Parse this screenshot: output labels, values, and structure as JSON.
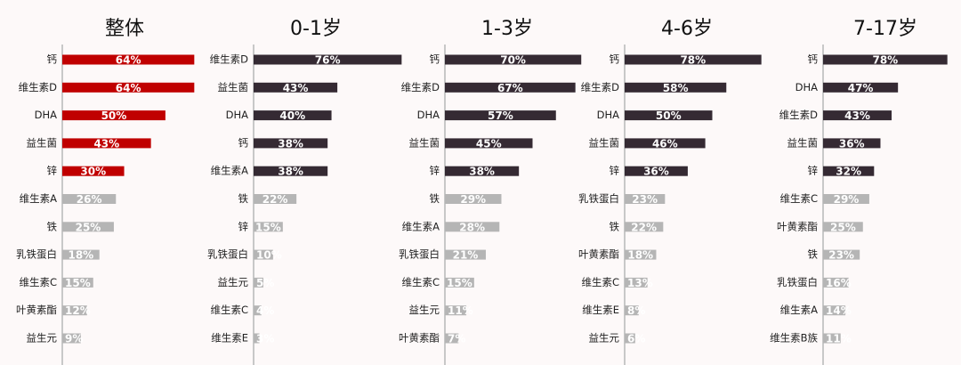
{
  "chart_data": [
    {
      "type": "bar",
      "title": "整体",
      "categories": [
        "钙",
        "维生素D",
        "DHA",
        "益生菌",
        "锌",
        "维生素A",
        "铁",
        "乳铁蛋白",
        "维生素C",
        "叶黄素酯",
        "益生元"
      ],
      "values": [
        64,
        64,
        50,
        43,
        30,
        26,
        25,
        18,
        15,
        12,
        9
      ],
      "value_labels": [
        "64%",
        "64%",
        "50%",
        "43%",
        "30%",
        "26%",
        "25%",
        "18%",
        "15%",
        "12%",
        "9%"
      ],
      "colors": [
        "#c00000",
        "#c00000",
        "#c00000",
        "#c00000",
        "#c00000",
        "#b5b5b5",
        "#b5b5b5",
        "#b5b5b5",
        "#b5b5b5",
        "#b5b5b5",
        "#b5b5b5"
      ],
      "xlim": [
        0,
        85
      ]
    },
    {
      "type": "bar",
      "title": "0-1岁",
      "categories": [
        "维生素D",
        "益生菌",
        "DHA",
        "钙",
        "维生素A",
        "铁",
        "锌",
        "乳铁蛋白",
        "益生元",
        "维生素C",
        "维生素E"
      ],
      "values": [
        76,
        43,
        40,
        38,
        38,
        22,
        15,
        10,
        5,
        4,
        3
      ],
      "value_labels": [
        "76%",
        "43%",
        "40%",
        "38%",
        "38%",
        "22%",
        "15%",
        "10%",
        "5%",
        "4%",
        "3%"
      ],
      "colors": [
        "#352a33",
        "#352a33",
        "#352a33",
        "#352a33",
        "#352a33",
        "#b5b5b5",
        "#b5b5b5",
        "#b5b5b5",
        "#b5b5b5",
        "#b5b5b5",
        "#b5b5b5"
      ],
      "xlim": [
        0,
        90
      ]
    },
    {
      "type": "bar",
      "title": "1-3岁",
      "categories": [
        "钙",
        "维生素D",
        "DHA",
        "益生菌",
        "锌",
        "铁",
        "维生素A",
        "乳铁蛋白",
        "维生素C",
        "益生元",
        "叶黄素酯"
      ],
      "values": [
        70,
        67,
        57,
        45,
        38,
        29,
        28,
        21,
        15,
        11,
        7
      ],
      "value_labels": [
        "70%",
        "67%",
        "57%",
        "45%",
        "38%",
        "29%",
        "28%",
        "21%",
        "15%",
        "11%",
        "7%"
      ],
      "colors": [
        "#352a33",
        "#352a33",
        "#352a33",
        "#352a33",
        "#352a33",
        "#b5b5b5",
        "#b5b5b5",
        "#b5b5b5",
        "#b5b5b5",
        "#b5b5b5",
        "#b5b5b5"
      ],
      "xlim": [
        0,
        90
      ]
    },
    {
      "type": "bar",
      "title": "4-6岁",
      "categories": [
        "钙",
        "维生素D",
        "DHA",
        "益生菌",
        "锌",
        "乳铁蛋白",
        "铁",
        "叶黄素酯",
        "维生素C",
        "维生素E",
        "益生元"
      ],
      "values": [
        78,
        58,
        50,
        46,
        36,
        23,
        22,
        18,
        13,
        8,
        6
      ],
      "value_labels": [
        "78%",
        "58%",
        "50%",
        "46%",
        "36%",
        "23%",
        "22%",
        "18%",
        "13%",
        "8%",
        "6%"
      ],
      "colors": [
        "#352a33",
        "#352a33",
        "#352a33",
        "#352a33",
        "#352a33",
        "#b5b5b5",
        "#b5b5b5",
        "#b5b5b5",
        "#b5b5b5",
        "#b5b5b5",
        "#b5b5b5"
      ],
      "xlim": [
        0,
        100
      ]
    },
    {
      "type": "bar",
      "title": "7-17岁",
      "categories": [
        "钙",
        "DHA",
        "维生素D",
        "益生菌",
        "锌",
        "维生素C",
        "叶黄素酯",
        "铁",
        "乳铁蛋白",
        "维生素A",
        "维生素B族"
      ],
      "values": [
        78,
        47,
        43,
        36,
        32,
        29,
        25,
        23,
        16,
        14,
        11
      ],
      "value_labels": [
        "78%",
        "47%",
        "43%",
        "36%",
        "32%",
        "29%",
        "25%",
        "23%",
        "16%",
        "14%",
        "11%"
      ],
      "colors": [
        "#352a33",
        "#352a33",
        "#352a33",
        "#352a33",
        "#352a33",
        "#b5b5b5",
        "#b5b5b5",
        "#b5b5b5",
        "#b5b5b5",
        "#b5b5b5",
        "#b5b5b5"
      ],
      "xlim": [
        0,
        110
      ]
    }
  ]
}
